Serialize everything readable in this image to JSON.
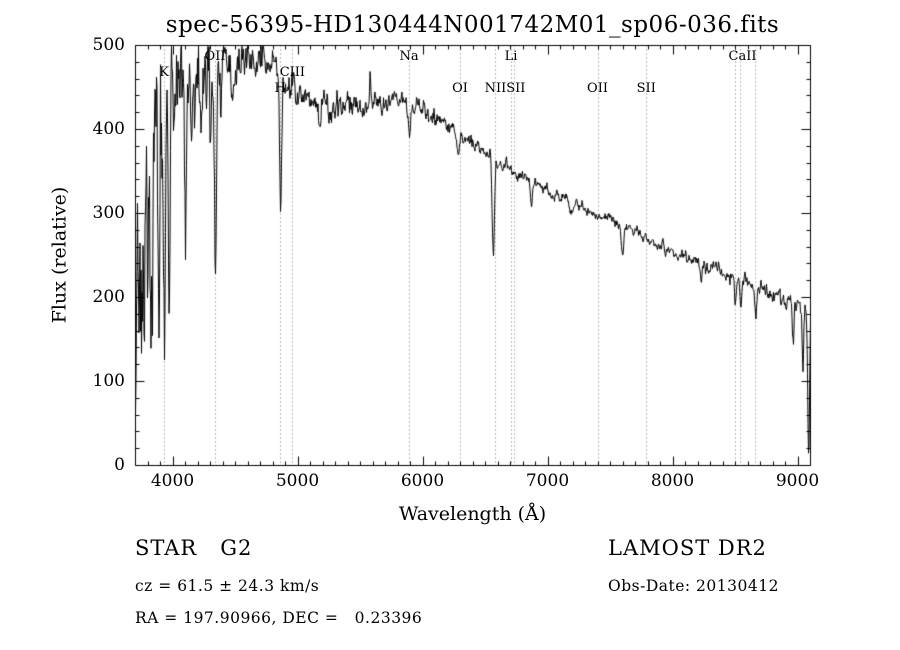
{
  "title": "spec-56395-HD130444N001742M01_sp06-036.fits",
  "axes": {
    "xlabel": "Wavelength (Å)",
    "ylabel": "Flux (relative)",
    "xticks": [
      4000,
      5000,
      6000,
      7000,
      8000,
      9000
    ],
    "yticks": [
      0,
      100,
      200,
      300,
      400,
      500
    ]
  },
  "footer": {
    "class_label": "STAR   G2",
    "cz": "cz = 61.5 ± 24.3 km/s",
    "ra_dec": "RA = 197.90966, DEC =   0.23396",
    "survey": "LAMOST DR2",
    "obs_date": "Obs-Date: 20130412"
  },
  "chart_data": {
    "type": "line",
    "title": "spec-56395-HD130444N001742M01_sp06-036.fits",
    "xlabel": "Wavelength (Å)",
    "ylabel": "Flux (relative)",
    "xlim": [
      3700,
      9100
    ],
    "ylim": [
      0,
      500
    ],
    "grid": false,
    "legend": "none",
    "line_color": "#000000",
    "dotted_line_color": "#777777",
    "background": "#ffffff",
    "spectral_line_markers": [
      {
        "label": "K",
        "wavelength": 3933,
        "tier": 2
      },
      {
        "label": "OII",
        "wavelength": 4340,
        "tier": 1
      },
      {
        "label": "H",
        "wavelength": 4861,
        "tier": 3
      },
      {
        "label": "CIII",
        "wavelength": 4959,
        "tier": 2
      },
      {
        "label": "Na",
        "wavelength": 5893,
        "tier": 1
      },
      {
        "label": "OI",
        "wavelength": 6300,
        "tier": 3
      },
      {
        "label": "Li",
        "wavelength": 6708,
        "tier": 1
      },
      {
        "label": "NIISII",
        "wavelength": 6660,
        "tier": 3
      },
      {
        "label": "OII",
        "wavelength": 7400,
        "tier": 3
      },
      {
        "label": "SII",
        "wavelength": 7790,
        "tier": 3
      },
      {
        "label": "CaII",
        "wavelength": 8560,
        "tier": 1
      }
    ],
    "dotted_line_wavelengths": [
      3933,
      4340,
      4861,
      4959,
      5893,
      6300,
      6583,
      6708,
      6731,
      7400,
      7790,
      8498,
      8542,
      8662
    ],
    "continuum_points": [
      [
        3700,
        218
      ],
      [
        3750,
        300
      ],
      [
        3800,
        352
      ],
      [
        3850,
        392
      ],
      [
        3900,
        418
      ],
      [
        3950,
        432
      ],
      [
        4000,
        442
      ],
      [
        4100,
        455
      ],
      [
        4200,
        464
      ],
      [
        4300,
        471
      ],
      [
        4400,
        477
      ],
      [
        4500,
        481
      ],
      [
        4600,
        483
      ],
      [
        4700,
        481
      ],
      [
        4800,
        472
      ],
      [
        4900,
        458
      ],
      [
        5000,
        449
      ],
      [
        5100,
        441
      ],
      [
        5200,
        433
      ],
      [
        5300,
        428
      ],
      [
        5400,
        426
      ],
      [
        5500,
        428
      ],
      [
        5600,
        432
      ],
      [
        5700,
        436
      ],
      [
        5800,
        438
      ],
      [
        5900,
        431
      ],
      [
        6000,
        421
      ],
      [
        6100,
        412
      ],
      [
        6200,
        404
      ],
      [
        6300,
        394
      ],
      [
        6400,
        385
      ],
      [
        6500,
        374
      ],
      [
        6600,
        362
      ],
      [
        6700,
        352
      ],
      [
        6800,
        344
      ],
      [
        6900,
        335
      ],
      [
        7000,
        327
      ],
      [
        7100,
        320
      ],
      [
        7200,
        313
      ],
      [
        7300,
        306
      ],
      [
        7400,
        299
      ],
      [
        7500,
        292
      ],
      [
        7600,
        284
      ],
      [
        7700,
        276
      ],
      [
        7800,
        268
      ],
      [
        7900,
        261
      ],
      [
        8000,
        255
      ],
      [
        8100,
        248
      ],
      [
        8200,
        243
      ],
      [
        8300,
        237
      ],
      [
        8400,
        231
      ],
      [
        8500,
        225
      ],
      [
        8600,
        218
      ],
      [
        8700,
        211
      ],
      [
        8800,
        204
      ],
      [
        8900,
        197
      ],
      [
        9000,
        189
      ],
      [
        9100,
        181
      ]
    ],
    "absorption_emission_features": [
      [
        3727,
        100,
        7
      ],
      [
        3750,
        130,
        6
      ],
      [
        3770,
        110,
        5
      ],
      [
        3798,
        140,
        6
      ],
      [
        3820,
        120,
        5
      ],
      [
        3835,
        170,
        6
      ],
      [
        3860,
        110,
        5
      ],
      [
        3889,
        185,
        6
      ],
      [
        3910,
        100,
        5
      ],
      [
        3933,
        300,
        7
      ],
      [
        3969,
        225,
        7
      ],
      [
        4026,
        60,
        6
      ],
      [
        4101,
        210,
        8
      ],
      [
        4144,
        60,
        6
      ],
      [
        4227,
        70,
        6
      ],
      [
        4300,
        80,
        8
      ],
      [
        4340,
        230,
        8
      ],
      [
        4383,
        80,
        6
      ],
      [
        4472,
        50,
        6
      ],
      [
        4861,
        160,
        8
      ],
      [
        5172,
        35,
        9
      ],
      [
        5270,
        25,
        8
      ],
      [
        5577,
        -40,
        4
      ],
      [
        5893,
        30,
        8
      ],
      [
        6277,
        18,
        10
      ],
      [
        6563,
        115,
        9
      ],
      [
        6867,
        25,
        9
      ],
      [
        7186,
        15,
        12
      ],
      [
        7594,
        35,
        11
      ],
      [
        8227,
        25,
        8
      ],
      [
        8498,
        30,
        7
      ],
      [
        8542,
        38,
        7
      ],
      [
        8662,
        38,
        7
      ],
      [
        8960,
        45,
        6
      ],
      [
        9040,
        70,
        6
      ],
      [
        9085,
        170,
        7
      ]
    ],
    "noise_sigma_profile": [
      [
        3700,
        70
      ],
      [
        3780,
        66
      ],
      [
        3850,
        58
      ],
      [
        3950,
        48
      ],
      [
        4050,
        38
      ],
      [
        4150,
        30
      ],
      [
        4250,
        24
      ],
      [
        4350,
        19
      ],
      [
        4450,
        15
      ],
      [
        4550,
        12
      ],
      [
        4700,
        10
      ],
      [
        4900,
        9
      ],
      [
        5100,
        8
      ],
      [
        5300,
        7.5
      ],
      [
        5500,
        7
      ],
      [
        5700,
        6.5
      ],
      [
        5900,
        6
      ],
      [
        6100,
        5.5
      ],
      [
        6300,
        5
      ],
      [
        6500,
        4.5
      ],
      [
        6800,
        4
      ],
      [
        7200,
        3.8
      ],
      [
        7600,
        3.8
      ],
      [
        8000,
        4
      ],
      [
        8400,
        4.5
      ],
      [
        8800,
        5
      ],
      [
        9100,
        6
      ]
    ],
    "sample_step_angstrom": 4,
    "noise_correlation": 0.55,
    "seed": 20130412
  }
}
